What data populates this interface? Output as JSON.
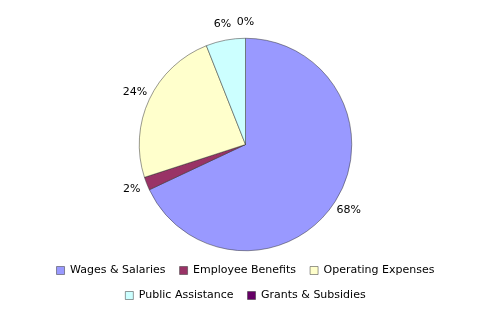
{
  "chart_data": {
    "type": "pie",
    "categories": [
      "Wages & Salaries",
      "Employee Benefits",
      "Operating Expenses",
      "Public Assistance",
      "Grants & Subsidies"
    ],
    "values": [
      68,
      2,
      24,
      6,
      0
    ],
    "value_labels": [
      "68%",
      "2%",
      "24%",
      "6%",
      "0%"
    ],
    "colors": [
      "#9999ff",
      "#993366",
      "#ffffcc",
      "#ccffff",
      "#660066"
    ],
    "data_labels": true,
    "legend": "bottom"
  }
}
